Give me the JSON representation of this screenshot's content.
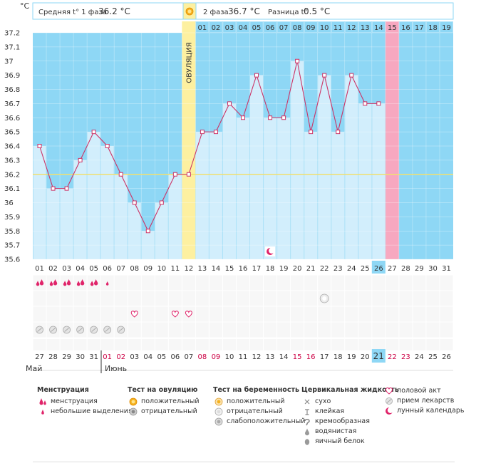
{
  "header": {
    "phase1_label": "Средняя t° 1 фаза",
    "phase1_value": "36.2 °C",
    "phase2_label": "2 фаза",
    "phase2_value": "36.7 °C",
    "diff_label": "Разница t°",
    "diff_value": "0.5 °C"
  },
  "unit_label": "°C",
  "ovulation_label": "ОВУЛЯЦИЯ",
  "month_labels": [
    "Май",
    "Июнь"
  ],
  "chart_data": {
    "type": "line",
    "ylim": [
      35.6,
      37.2
    ],
    "yticks": [
      "35.6",
      "35.7",
      "35.8",
      "35.9",
      "36",
      "36.1",
      "36.2",
      "36.3",
      "36.4",
      "36.5",
      "36.6",
      "36.7",
      "36.8",
      "36.9",
      "37",
      "37.1",
      "37.2"
    ],
    "coverline": 36.2,
    "ovulation_day_index": 11,
    "highlight_day_index": 26,
    "cycle_day_labels": [
      "01",
      "02",
      "03",
      "04",
      "05",
      "06",
      "07",
      "08",
      "09",
      "10",
      "11",
      "12",
      "13",
      "14",
      "15",
      "16",
      "17",
      "18",
      "19",
      "20",
      "21",
      "22",
      "23",
      "24",
      "25",
      "26",
      "27",
      "28",
      "29",
      "30",
      "31"
    ],
    "phase2_day_labels": [
      "01",
      "02",
      "03",
      "04",
      "05",
      "06",
      "07",
      "08",
      "09",
      "10",
      "11",
      "12",
      "13",
      "14",
      "15",
      "16",
      "17",
      "18",
      "19"
    ],
    "phase2_highlight_label": "15",
    "temperatures": [
      36.4,
      36.1,
      36.1,
      36.3,
      36.5,
      36.4,
      36.2,
      36.0,
      35.8,
      36.0,
      36.2,
      36.2,
      36.5,
      36.5,
      36.7,
      36.6,
      36.9,
      36.6,
      36.6,
      37.0,
      36.5,
      36.9,
      36.5,
      36.9,
      36.7,
      36.7
    ],
    "calendar_dates": [
      "27",
      "28",
      "29",
      "30",
      "31",
      "01",
      "02",
      "03",
      "04",
      "05",
      "06",
      "07",
      "08",
      "09",
      "10",
      "11",
      "12",
      "13",
      "14",
      "15",
      "16",
      "17",
      "18",
      "19",
      "20",
      "21",
      "22",
      "23",
      "24",
      "25",
      "26"
    ],
    "calendar_colors": [
      "#333333",
      "#333333",
      "#333333",
      "#333333",
      "#333333",
      "#cc0044",
      "#cc0044",
      "#333333",
      "#333333",
      "#333333",
      "#333333",
      "#333333",
      "#cc0044",
      "#cc0044",
      "#333333",
      "#333333",
      "#333333",
      "#333333",
      "#333333",
      "#cc0044",
      "#cc0044",
      "#333333",
      "#333333",
      "#333333",
      "#333333",
      "#333333",
      "#cc0044",
      "#cc0044",
      "#333333",
      "#333333",
      "#333333"
    ],
    "today_calendar_index": 25,
    "moon_day_index": 17,
    "menstruation_days": [
      0,
      1,
      2,
      3,
      4
    ],
    "spotting_days": [
      5
    ],
    "pregnancy_negative_days": [
      21
    ],
    "intercourse_days": [
      7,
      10,
      11
    ],
    "medication_days": [
      0,
      1,
      2,
      3,
      4,
      5,
      6
    ],
    "colors": {
      "plot_bg": "#8ed7f5",
      "bar": "#d2eefc",
      "line": "#cc3366",
      "ovulation": "#fdf0a0",
      "highlight": "#f7a8c0",
      "coverline": "#f0e070",
      "today": "#8ed7f5"
    }
  },
  "legend": {
    "menstruation": {
      "title": "Менструация",
      "items": [
        "менструация",
        "небольшие выделения"
      ]
    },
    "ovulation_test": {
      "title": "Тест на овуляцию",
      "items": [
        "положительный",
        "отрицательный"
      ]
    },
    "pregnancy_test": {
      "title": "Тест на беременность",
      "items": [
        "положительный",
        "отрицательный",
        "слабоположительный"
      ]
    },
    "cervical": {
      "title": "Цервикальная жидкость",
      "items": [
        "сухо",
        "клейкая",
        "кремообразная",
        "водянистая",
        "яичный белок"
      ]
    },
    "other": {
      "items": [
        "половой акт",
        "прием лекарств",
        "лунный календарь"
      ]
    }
  },
  "icons": [
    "drop-icon",
    "small-drop-icon",
    "sun-icon",
    "circle-icon",
    "cross-icon",
    "t-icon",
    "wave-icon",
    "egg-icon",
    "heart-icon",
    "pill-icon",
    "moon-icon"
  ]
}
